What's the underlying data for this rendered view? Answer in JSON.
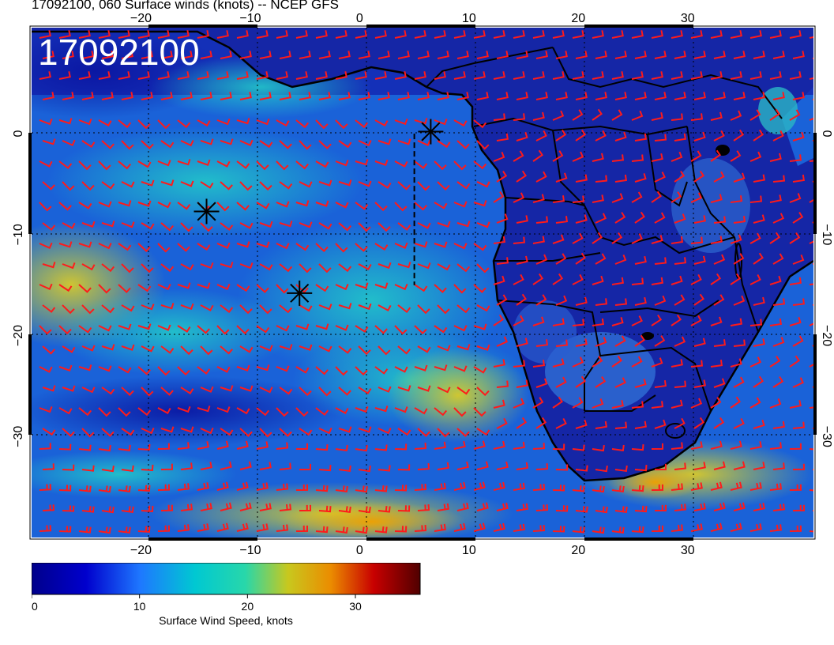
{
  "title": "17092100, 060 Surface winds (knots) -- NCEP GFS",
  "stamp": "17092100",
  "map": {
    "lon_range": [
      -30,
      41.5
    ],
    "lat_range": [
      -40,
      10.5
    ],
    "lon_ticks": [
      -20,
      -10,
      0,
      10,
      20,
      30
    ],
    "lat_ticks": [
      0,
      -10,
      -20,
      -30
    ],
    "lon_tick_labels": [
      "−20",
      "−10",
      "0",
      "10",
      "20",
      "30"
    ],
    "lat_tick_labels": [
      "0",
      "−10",
      "−20",
      "−30"
    ],
    "markers": [
      {
        "name": "marker-a",
        "lon": 6.5,
        "lat": 0.2
      },
      {
        "name": "marker-b",
        "lon": -14.0,
        "lat": -7.7
      },
      {
        "name": "marker-c",
        "lon": -5.5,
        "lat": -15.8
      }
    ],
    "dashed_line": {
      "lon": 5,
      "lat_from": 0,
      "lat_to": -15
    }
  },
  "colorbar": {
    "label": "Surface Wind Speed, knots",
    "tick_values": [
      0,
      10,
      20,
      30
    ],
    "tick_labels": [
      "0",
      "10",
      "20",
      "30"
    ],
    "range": [
      0,
      36
    ],
    "colors": [
      "#00008b",
      "#0000cd",
      "#1e78ff",
      "#00c8d2",
      "#28d7aa",
      "#c8c81e",
      "#eb8c00",
      "#c80000",
      "#500000"
    ]
  },
  "colors": {
    "ocean_low": "#0c1aa8",
    "ocean_mid": "#1a6be0",
    "ocean_cyan": "#1fb9d6",
    "ocean_strong": "#c6c826",
    "land": "#141e8f",
    "barb": "#ff1a1a",
    "grid": "#000000"
  }
}
